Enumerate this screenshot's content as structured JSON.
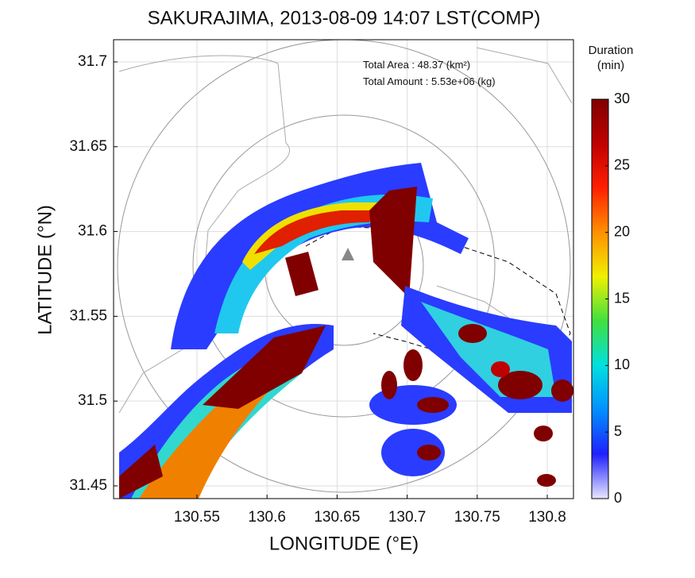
{
  "chart_data": {
    "type": "radar-map",
    "title": "SAKURAJIMA, 2013-08-09 14:07 LST(COMP)",
    "x_label": "LONGITUDE (°E)",
    "y_label": "LATITUDE (°N)",
    "xlim": [
      130.4905,
      130.8187
    ],
    "ylim": [
      31.4425,
      31.7131
    ],
    "xticks": [
      130.55,
      130.6,
      130.65,
      130.7,
      130.75,
      130.8
    ],
    "yticks": [
      31.45,
      31.5,
      31.55,
      31.6,
      31.65,
      31.7
    ],
    "grid": true,
    "annotations": [
      "Total Area   : 48.37 (km²)",
      "Total Amount : 5.53e+06 (kg)"
    ],
    "colorbar": {
      "title": "Duration",
      "unit": "(min)",
      "lim": [
        0,
        30
      ],
      "ticks": [
        0,
        5,
        10,
        15,
        20,
        25,
        30
      ],
      "colormap": [
        "#e8e8ff",
        "#2020ff",
        "#0090ff",
        "#00e0e0",
        "#40e040",
        "#f0f000",
        "#ff9000",
        "#ff2000",
        "#c00000",
        "#800000"
      ]
    }
  }
}
